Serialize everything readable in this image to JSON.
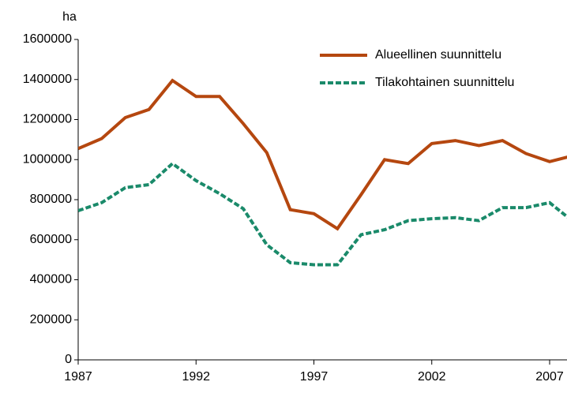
{
  "chart_data": {
    "type": "line",
    "y_label": "ha",
    "x": [
      1987,
      1988,
      1989,
      1990,
      1991,
      1992,
      1993,
      1994,
      1995,
      1996,
      1997,
      1998,
      1999,
      2000,
      2001,
      2002,
      2003,
      2004,
      2005,
      2006,
      2007,
      2008
    ],
    "series": [
      {
        "name": "Alueellinen suunnittelu",
        "color": "#b5470f",
        "dash": "solid",
        "values": [
          1055000,
          1105000,
          1210000,
          1250000,
          1395000,
          1315000,
          1315000,
          1180000,
          1035000,
          750000,
          730000,
          655000,
          825000,
          1000000,
          980000,
          1080000,
          1095000,
          1070000,
          1095000,
          1030000,
          990000,
          1020000
        ]
      },
      {
        "name": "Tilakohtainen suunnittelu",
        "color": "#1a8a6a",
        "dash": "dashed",
        "values": [
          745000,
          785000,
          860000,
          875000,
          980000,
          895000,
          830000,
          755000,
          575000,
          485000,
          475000,
          475000,
          625000,
          650000,
          695000,
          705000,
          710000,
          695000,
          760000,
          760000,
          785000,
          690000
        ]
      }
    ],
    "xlim": [
      1987,
      2007.7
    ],
    "xticks": [
      1987,
      1992,
      1997,
      2002,
      2007
    ],
    "ylim": [
      0,
      1600000
    ],
    "yticks": [
      0,
      200000,
      400000,
      600000,
      800000,
      1000000,
      1200000,
      1400000,
      1600000
    ],
    "grid": false,
    "legend": "top-right"
  }
}
